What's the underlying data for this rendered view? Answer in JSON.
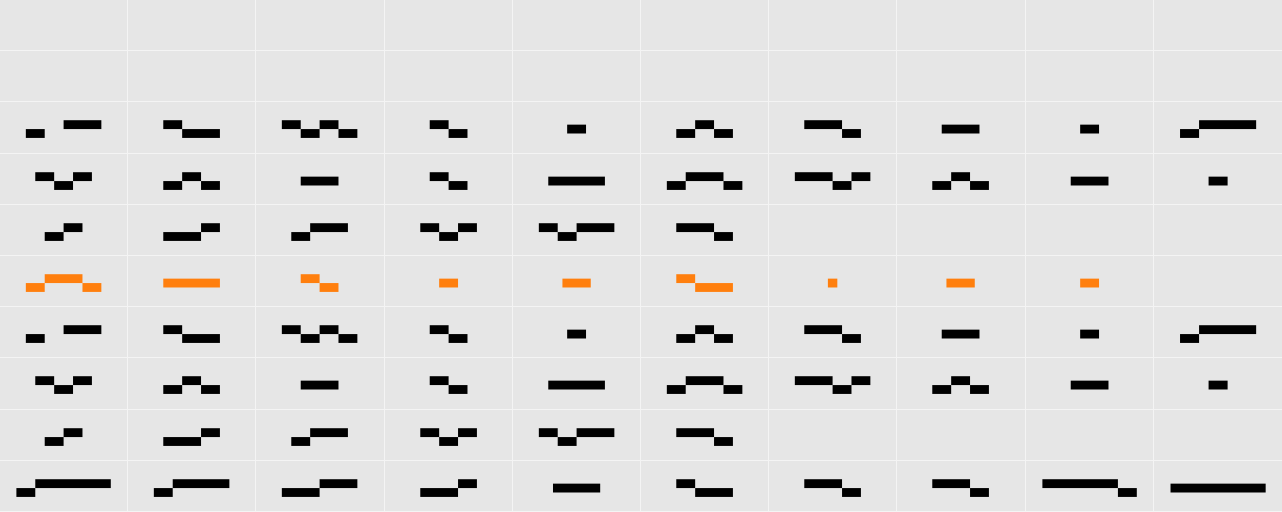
{
  "board": {
    "rows": 10,
    "cols": 10,
    "background": "#e6e6e6",
    "grid_line_color": "#f4f4f4",
    "colors": {
      "black": "#000000",
      "orange": "#ff7f0e"
    }
  },
  "glyphs": {
    "A": [
      [
        2,
        0,
        2,
        0
      ],
      [
        0,
        1,
        1,
        0
      ]
    ],
    "B": [
      [
        0,
        0,
        1,
        0
      ],
      [
        1,
        1,
        2,
        0
      ]
    ],
    "C": [
      [
        0,
        0,
        1,
        0
      ],
      [
        1,
        1,
        1,
        0
      ],
      [
        2,
        0,
        1,
        0
      ],
      [
        3,
        1,
        1,
        0
      ]
    ],
    "D": [
      [
        0,
        0,
        1,
        0
      ],
      [
        1,
        1,
        1,
        0
      ]
    ],
    "E": [
      [
        0,
        0,
        1,
        0
      ]
    ],
    "F": [
      [
        0,
        1,
        1,
        0
      ],
      [
        1,
        0,
        1,
        0
      ],
      [
        2,
        1,
        1,
        0
      ]
    ],
    "G": [
      [
        0,
        0,
        2,
        0
      ],
      [
        2,
        1,
        1,
        0
      ]
    ],
    "H": [
      [
        0,
        0,
        2,
        0
      ]
    ],
    "I": [
      [
        0,
        0,
        1,
        0
      ]
    ],
    "J": [
      [
        0,
        1,
        1,
        0
      ],
      [
        1,
        0,
        3,
        0
      ]
    ],
    "K": [
      [
        0,
        0,
        1,
        0
      ],
      [
        1,
        1,
        1,
        0
      ],
      [
        2,
        0,
        1,
        0
      ]
    ],
    "L": [
      [
        0,
        1,
        1,
        0
      ],
      [
        1,
        0,
        1,
        0
      ],
      [
        2,
        1,
        1,
        0
      ]
    ],
    "M": [
      [
        0,
        0,
        2,
        0
      ]
    ],
    "N": [
      [
        0,
        0,
        1,
        0
      ],
      [
        1,
        1,
        1,
        0
      ]
    ],
    "O": [
      [
        0,
        0,
        3,
        0
      ]
    ],
    "P": [
      [
        0,
        1,
        1,
        0
      ],
      [
        1,
        0,
        2,
        0
      ],
      [
        3,
        1,
        1,
        0
      ]
    ],
    "Q": [
      [
        0,
        0,
        2,
        0
      ],
      [
        2,
        1,
        1,
        0
      ],
      [
        3,
        0,
        1,
        0
      ]
    ],
    "R": [
      [
        0,
        1,
        1,
        0
      ],
      [
        1,
        0,
        1,
        0
      ],
      [
        2,
        1,
        1,
        0
      ]
    ],
    "S": [
      [
        0,
        0,
        2,
        0
      ]
    ],
    "T": [
      [
        0,
        0,
        1,
        0
      ]
    ],
    "U": [
      [
        0,
        1,
        1,
        0
      ],
      [
        1,
        0,
        1,
        0
      ]
    ],
    "V": [
      [
        0,
        1,
        2,
        0
      ],
      [
        2,
        0,
        1,
        0
      ]
    ],
    "W": [
      [
        0,
        1,
        1,
        0
      ],
      [
        1,
        0,
        2,
        0
      ]
    ],
    "X": [
      [
        0,
        0,
        1,
        0
      ],
      [
        1,
        1,
        1,
        0
      ],
      [
        2,
        0,
        1,
        0
      ]
    ],
    "Y": [
      [
        0,
        0,
        1,
        0
      ],
      [
        1,
        1,
        1,
        0
      ],
      [
        2,
        0,
        2,
        0
      ]
    ],
    "Z": [
      [
        0,
        0,
        2,
        0
      ],
      [
        2,
        1,
        1,
        0
      ]
    ],
    "a": [
      [
        0,
        1,
        1,
        0
      ],
      [
        1,
        0,
        2,
        0
      ],
      [
        3,
        1,
        1,
        0
      ]
    ],
    "b": [
      [
        0,
        0,
        3,
        0
      ]
    ],
    "c": [
      [
        0,
        0,
        1,
        0
      ],
      [
        1,
        1,
        1,
        0
      ]
    ],
    "d": [
      [
        0,
        0,
        1,
        0
      ]
    ],
    "e": [
      [
        0,
        0,
        1.5,
        0
      ]
    ],
    "f": [
      [
        0,
        0,
        1,
        0
      ],
      [
        1,
        1,
        2,
        0
      ]
    ],
    "g": [
      [
        0,
        0,
        0.5,
        0
      ]
    ],
    "h": [
      [
        0,
        0,
        1.5,
        0
      ]
    ],
    "i": [
      [
        0,
        0,
        1,
        0
      ]
    ],
    "j": [
      [
        0,
        1,
        1,
        0
      ],
      [
        1,
        0,
        4,
        0
      ]
    ],
    "k": [
      [
        0,
        1,
        1,
        0
      ],
      [
        1,
        0,
        3,
        0
      ]
    ],
    "l": [
      [
        0,
        1,
        2,
        0
      ],
      [
        2,
        0,
        2,
        0
      ]
    ],
    "m": [
      [
        0,
        1,
        2,
        0
      ],
      [
        2,
        0,
        1,
        0
      ]
    ],
    "n": [
      [
        0,
        0,
        2.5,
        0
      ]
    ],
    "o": [
      [
        0,
        0,
        1,
        0
      ],
      [
        1,
        1,
        2,
        0
      ]
    ],
    "p": [
      [
        0,
        0,
        2,
        0
      ],
      [
        2,
        1,
        1,
        0
      ]
    ],
    "q": [
      [
        0,
        0,
        2,
        0
      ],
      [
        2,
        1,
        1,
        0
      ]
    ],
    "r": [
      [
        0,
        0,
        4,
        0
      ],
      [
        4,
        1,
        1,
        0
      ]
    ],
    "s": [
      [
        0,
        0,
        5,
        0
      ]
    ]
  },
  "cells": [
    [
      null,
      null,
      null,
      null,
      null,
      null,
      null,
      null,
      null,
      null
    ],
    [
      null,
      null,
      null,
      null,
      null,
      null,
      null,
      null,
      null,
      null
    ],
    [
      "A",
      "B",
      "C",
      "D",
      "E",
      "F",
      "G",
      "H",
      "I",
      "J"
    ],
    [
      "K",
      "L",
      "M",
      "N",
      "O",
      "P",
      "Q",
      "R",
      "S",
      "T"
    ],
    [
      "U",
      "V",
      "W",
      "X",
      "Y",
      "Z",
      null,
      null,
      null,
      null
    ],
    [
      "a",
      "b",
      "c",
      "d",
      "e",
      "f",
      "g",
      "h",
      "i",
      null
    ],
    [
      "A",
      "B",
      "C",
      "D",
      "E",
      "F",
      "G",
      "H",
      "I",
      "J"
    ],
    [
      "K",
      "L",
      "M",
      "N",
      "O",
      "P",
      "Q",
      "R",
      "S",
      "T"
    ],
    [
      "U",
      "V",
      "W",
      "X",
      "Y",
      "Z",
      null,
      null,
      null,
      null
    ],
    [
      "j",
      "k",
      "l",
      "m",
      "n",
      "o",
      "p",
      "q",
      "r",
      "s"
    ]
  ],
  "highlight_row": 5
}
